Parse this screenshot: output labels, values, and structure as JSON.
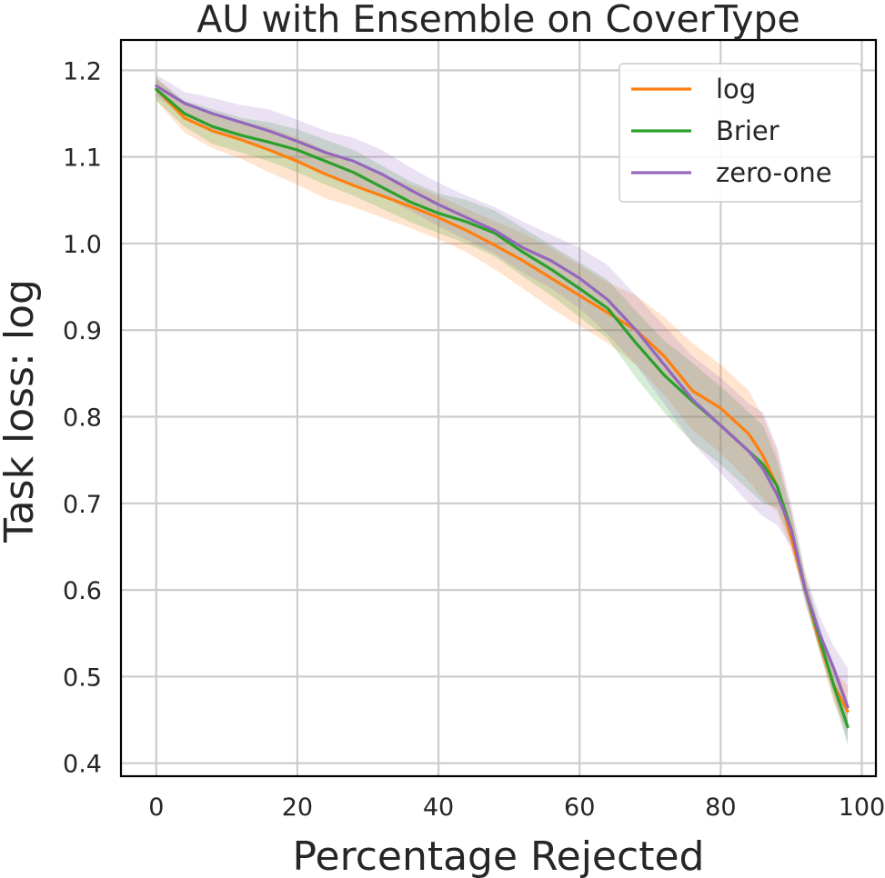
{
  "chart_data": {
    "type": "line",
    "title": "AU with Ensemble on CoverType",
    "xlabel": "Percentage Rejected",
    "ylabel": "Task loss: log",
    "xlim": [
      -5,
      102
    ],
    "ylim": [
      0.385,
      1.235
    ],
    "xticks": [
      "0",
      "20",
      "40",
      "60",
      "80",
      "100"
    ],
    "xtick_values": [
      0,
      20,
      40,
      60,
      80,
      100
    ],
    "yticks": [
      "0.4",
      "0.5",
      "0.6",
      "0.7",
      "0.8",
      "0.9",
      "1.0",
      "1.1",
      "1.2"
    ],
    "ytick_values": [
      0.4,
      0.5,
      0.6,
      0.7,
      0.8,
      0.9,
      1.0,
      1.1,
      1.2
    ],
    "grid": true,
    "legend_position": "top-right",
    "x": [
      0,
      4,
      8,
      12,
      16,
      20,
      24,
      28,
      32,
      36,
      40,
      44,
      48,
      52,
      56,
      60,
      64,
      68,
      72,
      76,
      80,
      84,
      86,
      88,
      90,
      92,
      94,
      96,
      98
    ],
    "series": [
      {
        "name": "log",
        "color": "#ff7f0e",
        "values": [
          1.178,
          1.145,
          1.13,
          1.12,
          1.108,
          1.095,
          1.08,
          1.067,
          1.055,
          1.043,
          1.03,
          1.015,
          0.998,
          0.98,
          0.96,
          0.94,
          0.92,
          0.9,
          0.87,
          0.83,
          0.81,
          0.78,
          0.755,
          0.72,
          0.66,
          0.6,
          0.54,
          0.49,
          0.46
        ],
        "lower": [
          1.165,
          1.128,
          1.11,
          1.098,
          1.082,
          1.068,
          1.052,
          1.042,
          1.03,
          1.018,
          1.005,
          0.99,
          0.97,
          0.948,
          0.925,
          0.905,
          0.885,
          0.86,
          0.825,
          0.785,
          0.758,
          0.725,
          0.705,
          0.69,
          0.645,
          0.59,
          0.53,
          0.47,
          0.435
        ],
        "upper": [
          1.192,
          1.162,
          1.15,
          1.142,
          1.134,
          1.122,
          1.108,
          1.092,
          1.08,
          1.068,
          1.055,
          1.04,
          1.026,
          1.012,
          0.995,
          0.975,
          0.955,
          0.94,
          0.915,
          0.885,
          0.86,
          0.83,
          0.8,
          0.76,
          0.69,
          0.615,
          0.555,
          0.505,
          0.49
        ]
      },
      {
        "name": "Brier",
        "color": "#2ca02c",
        "values": [
          1.178,
          1.15,
          1.135,
          1.125,
          1.117,
          1.108,
          1.095,
          1.082,
          1.065,
          1.048,
          1.035,
          1.025,
          1.012,
          0.99,
          0.97,
          0.948,
          0.925,
          0.885,
          0.848,
          0.818,
          0.79,
          0.76,
          0.745,
          0.72,
          0.67,
          0.6,
          0.545,
          0.49,
          0.442
        ],
        "lower": [
          1.165,
          1.135,
          1.115,
          1.105,
          1.095,
          1.082,
          1.068,
          1.055,
          1.04,
          1.025,
          1.012,
          1.0,
          0.985,
          0.962,
          0.94,
          0.915,
          0.89,
          0.845,
          0.805,
          0.77,
          0.745,
          0.715,
          0.7,
          0.695,
          0.655,
          0.585,
          0.53,
          0.475,
          0.42
        ],
        "upper": [
          1.19,
          1.165,
          1.155,
          1.145,
          1.14,
          1.132,
          1.12,
          1.108,
          1.09,
          1.072,
          1.058,
          1.05,
          1.038,
          1.018,
          0.998,
          0.978,
          0.958,
          0.922,
          0.888,
          0.862,
          0.835,
          0.805,
          0.79,
          0.75,
          0.69,
          0.615,
          0.56,
          0.505,
          0.465
        ]
      },
      {
        "name": "zero-one",
        "color": "#9467bd",
        "values": [
          1.182,
          1.162,
          1.15,
          1.14,
          1.13,
          1.118,
          1.105,
          1.095,
          1.08,
          1.062,
          1.045,
          1.03,
          1.015,
          0.995,
          0.98,
          0.96,
          0.935,
          0.9,
          0.86,
          0.82,
          0.79,
          0.76,
          0.74,
          0.71,
          0.67,
          0.6,
          0.55,
          0.51,
          0.465
        ],
        "lower": [
          1.17,
          1.148,
          1.132,
          1.12,
          1.108,
          1.095,
          1.08,
          1.068,
          1.055,
          1.038,
          1.02,
          1.004,
          0.988,
          0.966,
          0.948,
          0.925,
          0.895,
          0.86,
          0.815,
          0.77,
          0.735,
          0.7,
          0.685,
          0.675,
          0.65,
          0.585,
          0.53,
          0.48,
          0.425
        ],
        "upper": [
          1.195,
          1.175,
          1.168,
          1.16,
          1.155,
          1.143,
          1.13,
          1.122,
          1.108,
          1.088,
          1.07,
          1.055,
          1.042,
          1.025,
          1.01,
          0.995,
          0.975,
          0.94,
          0.905,
          0.87,
          0.845,
          0.815,
          0.805,
          0.765,
          0.7,
          0.62,
          0.57,
          0.535,
          0.51
        ]
      }
    ]
  }
}
